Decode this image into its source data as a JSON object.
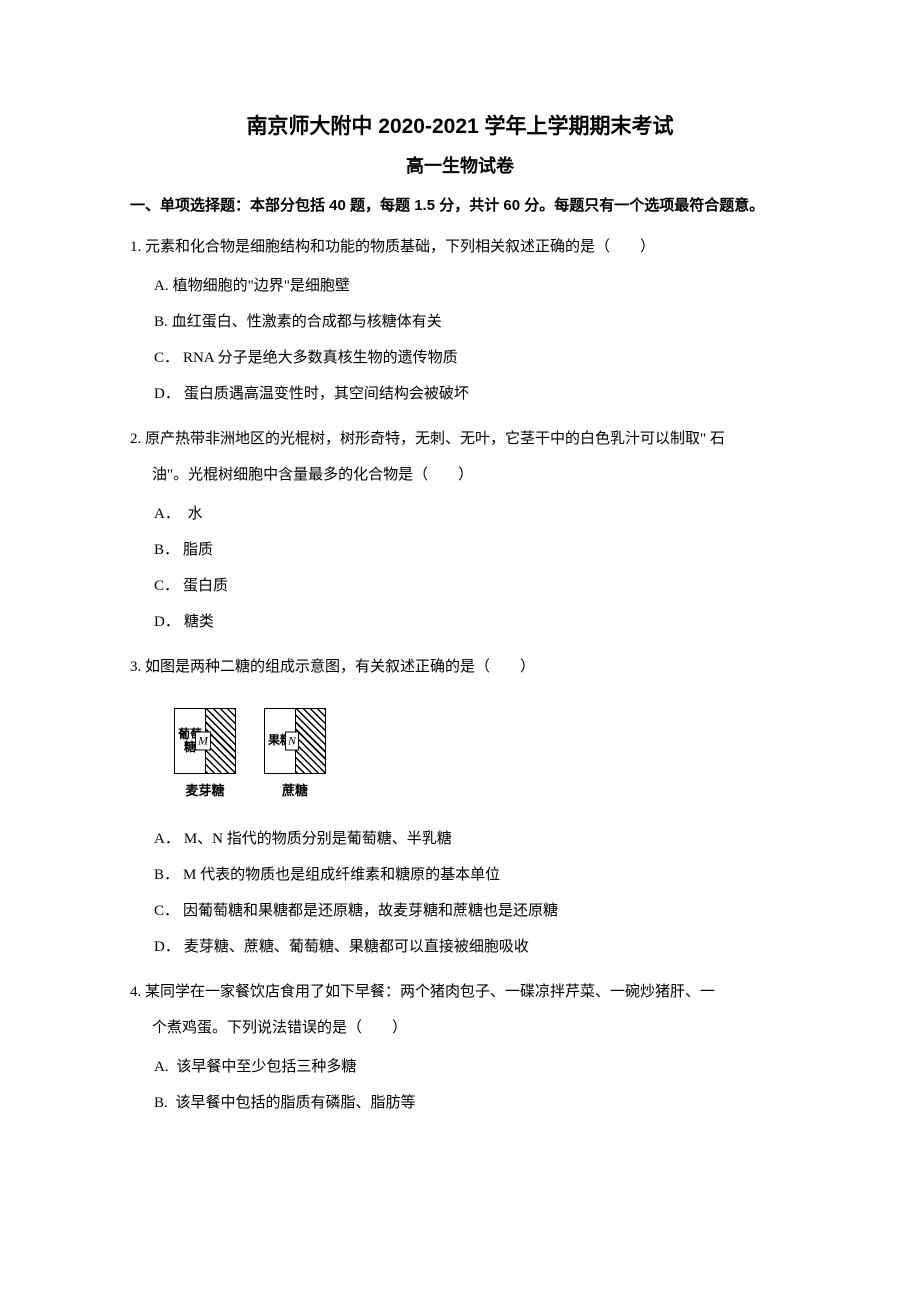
{
  "title_main": "南京师大附中 2020-2021 学年上学期期末考试",
  "title_sub": "高一生物试卷",
  "section_desc": "一、单项选择题：本部分包括 40 题，每题 1.5 分，共计 60 分。每题只有一个选项最符合题意。",
  "questions": [
    {
      "number": "1.",
      "stem": "元素和化合物是细胞结构和功能的物质基础，下列相关叙述正确的是（　　）",
      "options": [
        {
          "label": "A.",
          "text": "植物细胞的\"边界\"是细胞壁"
        },
        {
          "label": "B.",
          "text": "血红蛋白、性激素的合成都与核糖体有关"
        },
        {
          "label": "C．",
          "text": "RNA 分子是绝大多数真核生物的遗传物质"
        },
        {
          "label": "D．",
          "text": "蛋白质遇高温变性时，其空间结构会被破坏"
        }
      ]
    },
    {
      "number": "2.",
      "stem_l1": "原产热带非洲地区的光棍树，树形奇特，无刺、无叶，它茎干中的白色乳汁可以制取\" 石",
      "stem_l2": "油\"。光棍树细胞中含量最多的化合物是（　　）",
      "options": [
        {
          "label": "A．",
          "text": " 水"
        },
        {
          "label": "B．",
          "text": "脂质"
        },
        {
          "label": "C．",
          "text": "蛋白质"
        },
        {
          "label": "D．",
          "text": "糖类"
        }
      ]
    },
    {
      "number": "3.",
      "stem": "如图是两种二糖的组成示意图，有关叙述正确的是（　　）",
      "diagram": {
        "left": {
          "top_label": "葡萄糖",
          "letter": "M",
          "caption": "麦芽糖"
        },
        "right": {
          "top_label": "果糖",
          "letter": "N",
          "caption": "蔗糖"
        }
      },
      "options": [
        {
          "label": "A．",
          "text": "M、N 指代的物质分别是葡萄糖、半乳糖"
        },
        {
          "label": "B．",
          "text": "M 代表的物质也是组成纤维素和糖原的基本单位"
        },
        {
          "label": "C．",
          "text": "因葡萄糖和果糖都是还原糖，故麦芽糖和蔗糖也是还原糖"
        },
        {
          "label": "D．",
          "text": "麦芽糖、蔗糖、葡萄糖、果糖都可以直接被细胞吸收"
        }
      ]
    },
    {
      "number": "4.",
      "stem_l1": "某同学在一家餐饮店食用了如下早餐：两个猪肉包子、一碟凉拌芹菜、一碗炒猪肝、一",
      "stem_l2": "个煮鸡蛋。下列说法错误的是（　　）",
      "options": [
        {
          "label": "A.",
          "text": " 该早餐中至少包括三种多糖"
        },
        {
          "label": "B.",
          "text": " 该早餐中包括的脂质有磷脂、脂肪等"
        }
      ]
    }
  ]
}
